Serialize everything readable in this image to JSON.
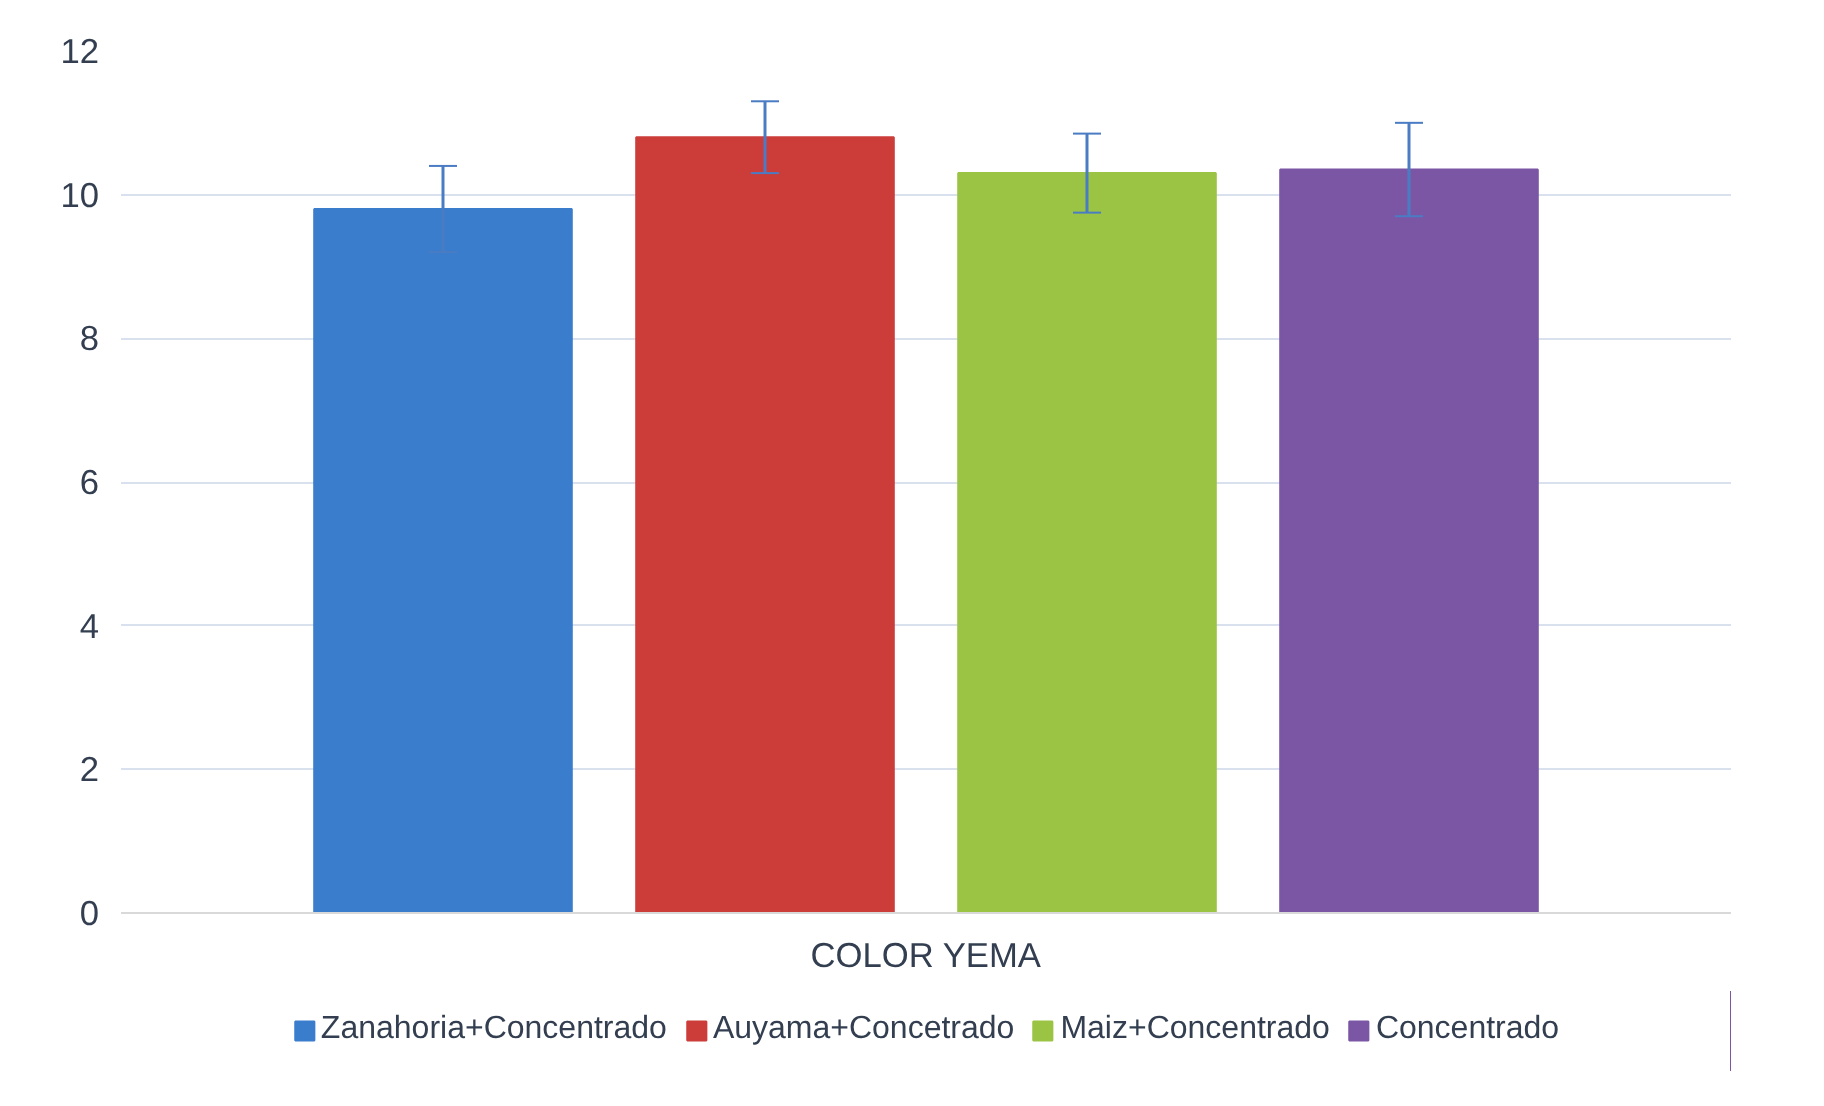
{
  "chart_data": {
    "type": "bar",
    "categories": [
      "COLOR YEMA"
    ],
    "series": [
      {
        "name": "Zanahoria+Concentrado",
        "color": "#3a7dcc",
        "values": [
          9.8
        ],
        "errors": [
          0.6
        ]
      },
      {
        "name": "Auyama+Concetrado",
        "color": "#cc3d3a",
        "values": [
          10.8
        ],
        "errors": [
          0.5
        ]
      },
      {
        "name": "Maiz+Concentrado",
        "color": "#9bc445",
        "values": [
          10.3
        ],
        "errors": [
          0.55
        ]
      },
      {
        "name": "Concentrado",
        "color": "#7a56a5",
        "values": [
          10.35
        ],
        "errors": [
          0.65
        ]
      }
    ],
    "ylim": [
      0,
      12
    ],
    "yticks": [
      0,
      2,
      4,
      6,
      8,
      10,
      12
    ],
    "grid": "y",
    "legend": "bottom"
  }
}
